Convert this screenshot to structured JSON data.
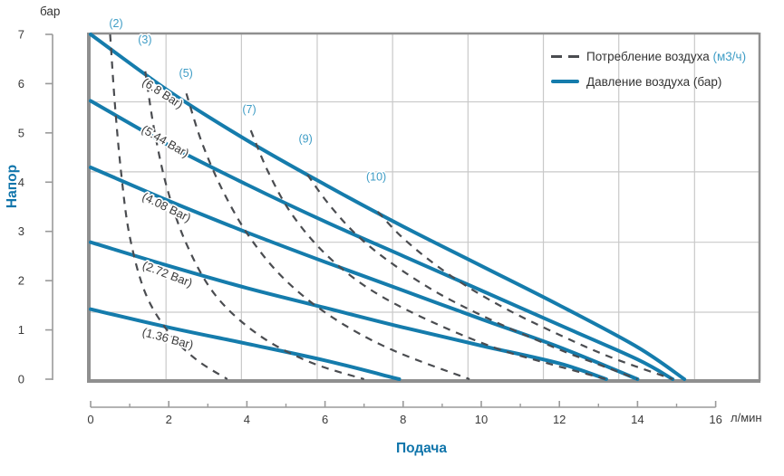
{
  "chart_data": {
    "type": "line",
    "title": "",
    "xlabel": "Подача",
    "ylabel": "Напор",
    "x_unit": "л/мин",
    "y_unit": "бар",
    "xlim": [
      0,
      17.1
    ],
    "ylim": [
      0,
      7
    ],
    "x_ticks": [
      0,
      2,
      4,
      6,
      8,
      10,
      12,
      14,
      16
    ],
    "x_minor_ticks": [
      1,
      3,
      5,
      7,
      9,
      11,
      13,
      15
    ],
    "y_ticks": [
      0,
      1,
      2,
      3,
      4,
      5,
      6,
      7
    ],
    "grid_vertical_q": [
      1.93,
      3.86,
      5.8,
      7.73,
      9.66,
      11.59,
      13.52,
      15.46
    ],
    "grid_horizontal_h": [
      1.36,
      2.78,
      4.21,
      5.63
    ],
    "legend": {
      "consumption_label": "Потребление воздуха",
      "consumption_unit": "(м3/ч)",
      "pressure_label": "Давление воздуха (бар)"
    },
    "colors": {
      "pressure_line": "#157cac",
      "consumption_line": "#4a4c50",
      "consumption_label": "#3f9dc6",
      "pressure_label": "#3a3a3a",
      "axis_title": "#1075ab",
      "tick_text": "#3a3a3a",
      "grid": "#c9c9c9",
      "border": "#8f8f8f"
    },
    "pressure_series": [
      {
        "name": "6.8 Bar",
        "label": "(6.8 Bar)",
        "label_q": 1.79,
        "label_h": 5.74,
        "label_angle": 33,
        "points": [
          [
            0,
            7.0
          ],
          [
            2,
            5.85
          ],
          [
            4,
            4.85
          ],
          [
            6,
            3.95
          ],
          [
            8,
            3.1
          ],
          [
            10,
            2.3
          ],
          [
            12,
            1.5
          ],
          [
            14,
            0.65
          ],
          [
            15.2,
            0
          ]
        ]
      },
      {
        "name": "5.44 Bar",
        "label": "(5.44 Bar)",
        "label_q": 1.86,
        "label_h": 4.76,
        "label_angle": 30,
        "points": [
          [
            0,
            5.65
          ],
          [
            2,
            4.75
          ],
          [
            4,
            3.95
          ],
          [
            6,
            3.2
          ],
          [
            8,
            2.5
          ],
          [
            10,
            1.8
          ],
          [
            12,
            1.1
          ],
          [
            14,
            0.4
          ],
          [
            14.9,
            0
          ]
        ]
      },
      {
        "name": "4.08 Bar",
        "label": "(4.08 Bar)",
        "label_q": 1.9,
        "label_h": 3.42,
        "label_angle": 26,
        "points": [
          [
            0,
            4.3
          ],
          [
            2,
            3.62
          ],
          [
            4,
            2.98
          ],
          [
            6,
            2.38
          ],
          [
            8,
            1.8
          ],
          [
            10,
            1.22
          ],
          [
            12,
            0.65
          ],
          [
            14,
            0
          ]
        ]
      },
      {
        "name": "2.72 Bar",
        "label": "(2.72 Bar)",
        "label_q": 1.93,
        "label_h": 2.06,
        "label_angle": 21,
        "points": [
          [
            0,
            2.78
          ],
          [
            2,
            2.3
          ],
          [
            4,
            1.85
          ],
          [
            6,
            1.45
          ],
          [
            8,
            1.05
          ],
          [
            10,
            0.68
          ],
          [
            12,
            0.32
          ],
          [
            13.2,
            0
          ]
        ]
      },
      {
        "name": "1.36 Bar",
        "label": "(1.36 Bar)",
        "label_q": 1.95,
        "label_h": 0.75,
        "label_angle": 15,
        "points": [
          [
            0,
            1.42
          ],
          [
            2,
            1.05
          ],
          [
            4,
            0.72
          ],
          [
            6,
            0.38
          ],
          [
            7.9,
            0
          ]
        ]
      }
    ],
    "consumption_series": [
      {
        "name": "2 m3/h",
        "label": "(2)",
        "label_q": 0.65,
        "label_h": 7.15,
        "points": [
          [
            0.5,
            7.0
          ],
          [
            0.62,
            5.6
          ],
          [
            0.78,
            4.2
          ],
          [
            1.0,
            2.9
          ],
          [
            1.4,
            1.75
          ],
          [
            2.0,
            0.95
          ],
          [
            2.7,
            0.4
          ],
          [
            3.5,
            0
          ]
        ]
      },
      {
        "name": "3 m3/h",
        "label": "(3)",
        "label_q": 1.39,
        "label_h": 6.82,
        "points": [
          [
            1.4,
            6.25
          ],
          [
            1.62,
            5.1
          ],
          [
            1.95,
            3.9
          ],
          [
            2.45,
            2.75
          ],
          [
            3.2,
            1.7
          ],
          [
            4.3,
            0.9
          ],
          [
            5.6,
            0.35
          ],
          [
            7.0,
            0
          ]
        ]
      },
      {
        "name": "5 m3/h",
        "label": "(5)",
        "label_q": 2.44,
        "label_h": 6.14,
        "points": [
          [
            2.45,
            5.8
          ],
          [
            2.85,
            4.8
          ],
          [
            3.4,
            3.8
          ],
          [
            4.1,
            2.85
          ],
          [
            5.0,
            2.0
          ],
          [
            6.2,
            1.25
          ],
          [
            7.7,
            0.6
          ],
          [
            9.7,
            0
          ]
        ]
      },
      {
        "name": "7 m3/h",
        "label": "(7)",
        "label_q": 4.06,
        "label_h": 5.4,
        "points": [
          [
            4.1,
            5.05
          ],
          [
            4.55,
            4.2
          ],
          [
            5.15,
            3.35
          ],
          [
            6.0,
            2.55
          ],
          [
            7.1,
            1.85
          ],
          [
            8.5,
            1.25
          ],
          [
            10.3,
            0.65
          ],
          [
            11.8,
            0.3
          ],
          [
            13.2,
            0
          ]
        ]
      },
      {
        "name": "9 m3/h",
        "label": "(9)",
        "label_q": 5.5,
        "label_h": 4.8,
        "points": [
          [
            5.55,
            4.15
          ],
          [
            6.1,
            3.55
          ],
          [
            6.85,
            2.9
          ],
          [
            7.8,
            2.3
          ],
          [
            9.0,
            1.7
          ],
          [
            10.4,
            1.15
          ],
          [
            12.0,
            0.6
          ],
          [
            13.0,
            0.3
          ],
          [
            14.0,
            0
          ]
        ]
      },
      {
        "name": "10 m3/h",
        "label": "(10)",
        "label_q": 7.31,
        "label_h": 4.03,
        "points": [
          [
            7.35,
            3.4
          ],
          [
            7.95,
            2.9
          ],
          [
            8.7,
            2.4
          ],
          [
            9.6,
            1.9
          ],
          [
            10.7,
            1.4
          ],
          [
            12.0,
            0.9
          ],
          [
            13.3,
            0.45
          ],
          [
            14.9,
            0
          ]
        ]
      }
    ]
  }
}
